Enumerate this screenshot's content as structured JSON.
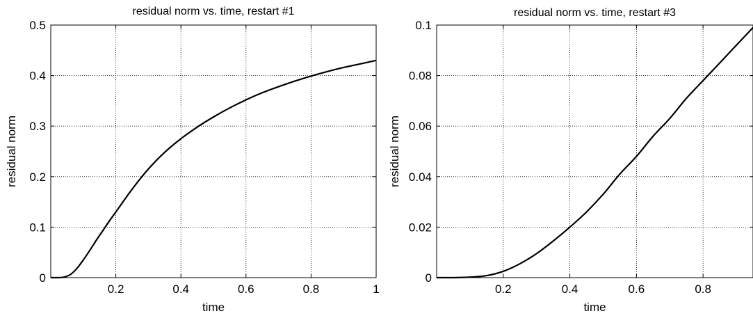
{
  "chart_data": [
    {
      "type": "line",
      "title": "residual norm vs. time, restart #1",
      "xlabel": "time",
      "ylabel": "residual norm",
      "xlim": [
        0,
        1
      ],
      "ylim": [
        0,
        0.5
      ],
      "xticks": [
        0.2,
        0.4,
        0.6,
        0.8,
        1
      ],
      "xtick_labels": [
        "0.2",
        "0.4",
        "0.6",
        "0.8",
        "1"
      ],
      "yticks": [
        0,
        0.1,
        0.2,
        0.3,
        0.4,
        0.5
      ],
      "ytick_labels": [
        "0",
        "0.1",
        "0.2",
        "0.3",
        "0.4",
        "0.5"
      ],
      "grid": true,
      "series": [
        {
          "color": "#000000",
          "x": [
            0,
            0.02,
            0.04,
            0.06,
            0.08,
            0.1,
            0.12,
            0.14,
            0.16,
            0.18,
            0.2,
            0.25,
            0.3,
            0.35,
            0.4,
            0.45,
            0.5,
            0.55,
            0.6,
            0.65,
            0.7,
            0.75,
            0.8,
            0.85,
            0.9,
            0.95,
            1.0
          ],
          "y": [
            0,
            0,
            0.001,
            0.006,
            0.018,
            0.035,
            0.054,
            0.074,
            0.093,
            0.112,
            0.13,
            0.175,
            0.215,
            0.248,
            0.275,
            0.298,
            0.318,
            0.336,
            0.352,
            0.366,
            0.378,
            0.389,
            0.399,
            0.408,
            0.416,
            0.423,
            0.43
          ]
        }
      ]
    },
    {
      "type": "line",
      "title": "residual norm vs. time, restart #3",
      "xlabel": "time",
      "ylabel": "residual norm",
      "xlim": [
        0,
        0.95
      ],
      "ylim": [
        0,
        0.1
      ],
      "xticks": [
        0.2,
        0.4,
        0.6,
        0.8
      ],
      "xtick_labels": [
        "0.2",
        "0.4",
        "0.6",
        "0.8"
      ],
      "yticks": [
        0,
        0.02,
        0.04,
        0.06,
        0.08,
        0.1
      ],
      "ytick_labels": [
        "0",
        "0.02",
        "0.04",
        "0.06",
        "0.08",
        "0.1"
      ],
      "grid": true,
      "series": [
        {
          "color": "#000000",
          "x": [
            0,
            0.05,
            0.1,
            0.15,
            0.2,
            0.25,
            0.3,
            0.35,
            0.4,
            0.45,
            0.5,
            0.55,
            0.6,
            0.65,
            0.7,
            0.75,
            0.8,
            0.85,
            0.9,
            0.95
          ],
          "y": [
            0,
            0,
            0.0002,
            0.0008,
            0.0025,
            0.0055,
            0.0095,
            0.0145,
            0.02,
            0.026,
            0.033,
            0.041,
            0.048,
            0.056,
            0.063,
            0.071,
            0.078,
            0.085,
            0.092,
            0.099
          ]
        }
      ]
    }
  ]
}
